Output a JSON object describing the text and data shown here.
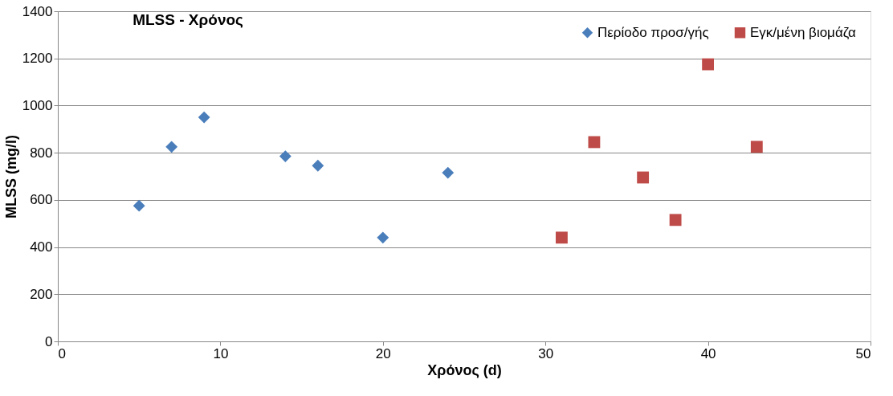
{
  "chart_data": {
    "type": "scatter",
    "title": "MLSS - Χρόνος",
    "xlabel": "Χρόνος (d)",
    "ylabel": "MLSS (mg/l)",
    "xlim": [
      0,
      50
    ],
    "xticks": [
      0,
      10,
      20,
      30,
      40,
      50
    ],
    "ylim": [
      0,
      1400
    ],
    "yticks": [
      0,
      200,
      400,
      600,
      800,
      1000,
      1200,
      1400
    ],
    "grid": "y",
    "legend": "top right",
    "series": [
      {
        "name": "Περίοδο προσ/γής",
        "color": "#4a7ebb",
        "marker": "diamond",
        "x": [
          5,
          7,
          9,
          14,
          16,
          20,
          24
        ],
        "values": [
          575,
          825,
          950,
          785,
          745,
          440,
          715
        ]
      },
      {
        "name": "Εγκ/μένη βιομάζα",
        "color": "#be4b48",
        "marker": "square",
        "x": [
          31,
          33,
          36,
          38,
          40,
          43
        ],
        "values": [
          440,
          845,
          695,
          515,
          1175,
          825
        ]
      }
    ]
  }
}
